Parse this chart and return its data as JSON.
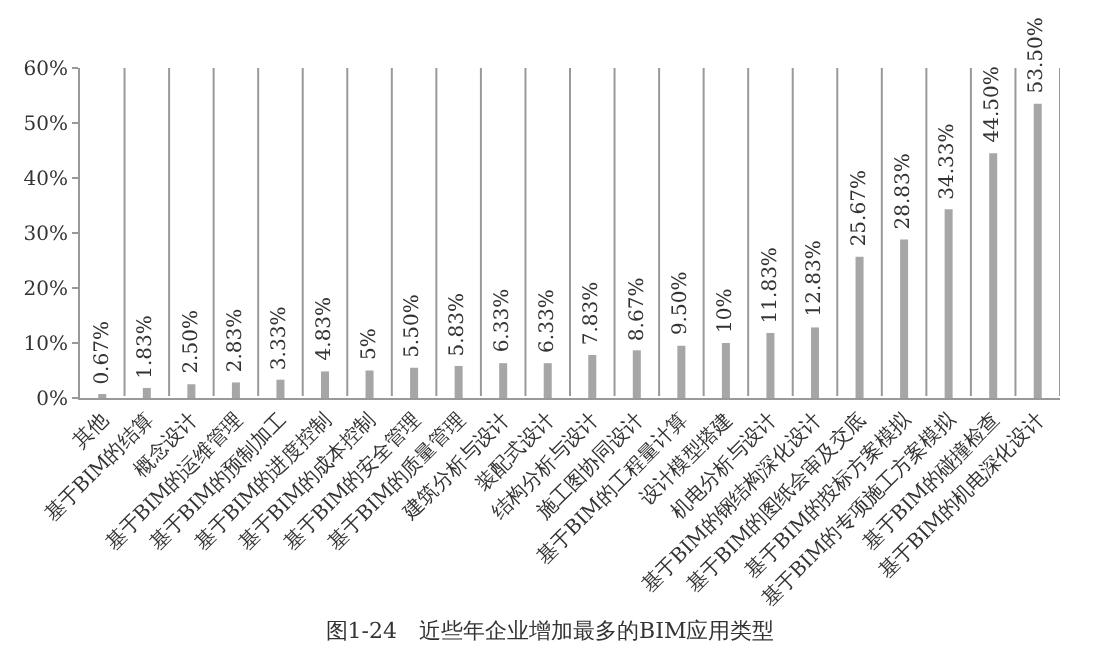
{
  "chart_data": {
    "type": "bar",
    "title": "图1-24　近些年企业增加最多的BIM应用类型",
    "categories": [
      "其他",
      "基于BIM的结算",
      "概念设计",
      "基于BIM的运维管理",
      "基于BIM的预制加工",
      "基于BIM的进度控制",
      "基于BIM的成本控制",
      "基于BIM的安全管理",
      "基于BIM的质量管理",
      "建筑分析与设计",
      "装配式设计",
      "结构分析与设计",
      "施工图协同设计",
      "基于BIM的工程量计算",
      "设计模型搭建",
      "机电分析与设计",
      "基于BIM的钢结构深化设计",
      "基于BIM的图纸会审及交底",
      "基于BIM的投标方案模拟",
      "基于BIM的专项施工方案模拟",
      "基于BIM的碰撞检查",
      "基于BIM的机电深化设计"
    ],
    "values": [
      0.67,
      1.83,
      2.5,
      2.83,
      3.33,
      4.83,
      5,
      5.5,
      5.83,
      6.33,
      6.33,
      7.83,
      8.67,
      9.5,
      10,
      11.83,
      12.83,
      25.67,
      28.83,
      34.33,
      44.5,
      53.5
    ],
    "value_labels": [
      "0.67%",
      "1.83%",
      "2.50%",
      "2.83%",
      "3.33%",
      "4.83%",
      "5%",
      "5.50%",
      "5.83%",
      "6.33%",
      "6.33%",
      "7.83%",
      "8.67%",
      "9.50%",
      "10%",
      "11.83%",
      "12.83%",
      "25.67%",
      "28.83%",
      "34.33%",
      "44.50%",
      "53.50%"
    ],
    "color": "#a6a6a6",
    "ylim": [
      0,
      60
    ],
    "yticks": [
      {
        "value": 0,
        "label": "0%"
      },
      {
        "value": 10,
        "label": "10%"
      },
      {
        "value": 20,
        "label": "20%"
      },
      {
        "value": 30,
        "label": "30%"
      },
      {
        "value": 40,
        "label": "40%"
      },
      {
        "value": 50,
        "label": "50%"
      },
      {
        "value": 60,
        "label": "60%"
      }
    ],
    "grid": "x",
    "legend": false
  }
}
